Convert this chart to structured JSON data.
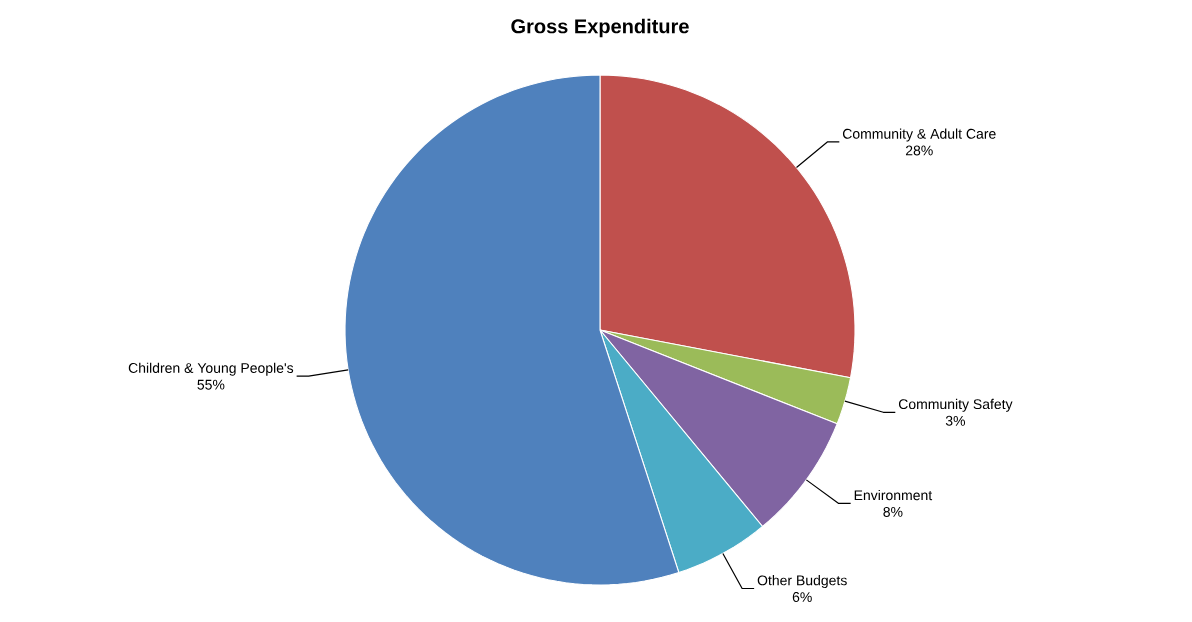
{
  "chart_data": {
    "type": "pie",
    "title": "Gross Expenditure",
    "categories": [
      "Community & Adult Care",
      "Community Safety",
      "Environment",
      "Other Budgets",
      "Children & Young People's"
    ],
    "values": [
      28,
      3,
      8,
      6,
      55
    ],
    "value_labels": [
      "28%",
      "3%",
      "8%",
      "6%",
      "55%"
    ],
    "colors": [
      "#c0504d",
      "#9bbb59",
      "#8064a2",
      "#4bacc6",
      "#4f81bd"
    ]
  }
}
